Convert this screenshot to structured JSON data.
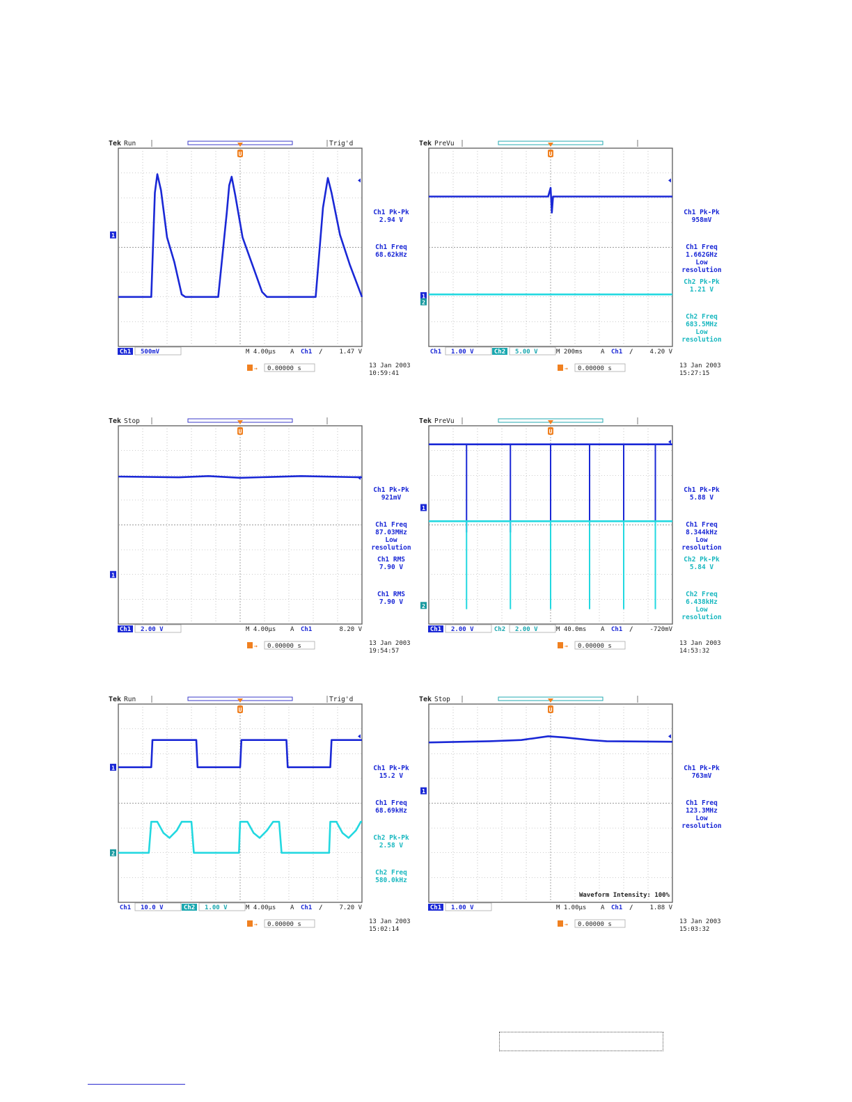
{
  "colors": {
    "ch1": "#1a28d6",
    "ch2": "#22d8e0",
    "grid": "#9a9a9a",
    "trigger": "#f08020",
    "text": "#1a28c8",
    "dark": "#222222"
  },
  "chart_data": [
    {
      "type": "line",
      "status": {
        "brand": "Tek",
        "state": "Run",
        "trig": "Trig'd"
      },
      "channels": [
        {
          "label": "Ch1",
          "scale": "500mV",
          "inverse": true
        }
      ],
      "timebase": "M 4.00µs",
      "trigger": {
        "mode": "A",
        "ch": "Ch1",
        "slope": "rising",
        "level": "1.47 V"
      },
      "position": "0.00000 s",
      "date": "13 Jan  2003",
      "time": "10:59:41",
      "measurements": [
        {
          "label": "Ch1 Pk-Pk",
          "value": "2.94 V",
          "ch": 1
        },
        {
          "label": "Ch1 Freq",
          "value": "68.62kHz",
          "ch": 1
        }
      ],
      "series": [
        {
          "ch": 1,
          "marker_y": 4.5,
          "shape": "triangle",
          "points": [
            [
              0,
              2.0
            ],
            [
              0.9,
              2.0
            ],
            [
              1.35,
              2.0
            ],
            [
              1.5,
              6.2
            ],
            [
              1.6,
              6.95
            ],
            [
              1.75,
              6.3
            ],
            [
              2.0,
              4.4
            ],
            [
              2.3,
              3.4
            ],
            [
              2.6,
              2.1
            ],
            [
              2.75,
              2.0
            ],
            [
              4.1,
              2.0
            ],
            [
              4.45,
              5.4
            ],
            [
              4.55,
              6.5
            ],
            [
              4.65,
              6.85
            ],
            [
              4.8,
              6.1
            ],
            [
              5.1,
              4.4
            ],
            [
              5.5,
              3.3
            ],
            [
              5.9,
              2.2
            ],
            [
              6.1,
              2.0
            ],
            [
              7.5,
              2.0
            ],
            [
              8.1,
              2.0
            ],
            [
              8.4,
              5.6
            ],
            [
              8.6,
              6.8
            ],
            [
              8.75,
              6.2
            ],
            [
              9.1,
              4.5
            ],
            [
              9.5,
              3.3
            ],
            [
              10,
              2.0
            ]
          ]
        }
      ]
    },
    {
      "type": "line",
      "status": {
        "brand": "Tek",
        "state": "PreVu",
        "trig": ""
      },
      "channels": [
        {
          "label": "Ch1",
          "scale": "1.00 V",
          "inverse": false
        },
        {
          "label": "Ch2",
          "scale": "5.00 V",
          "inverse": true
        }
      ],
      "timebase": "M 200ms",
      "trigger": {
        "mode": "A",
        "ch": "Ch1",
        "slope": "rising",
        "level": "4.20 V"
      },
      "position": "0.00000 s",
      "date": "13 Jan  2003",
      "time": "15:27:15",
      "measurements": [
        {
          "label": "Ch1 Pk-Pk",
          "value": "958mV",
          "ch": 1
        },
        {
          "label": "Ch1 Freq",
          "value": "1.662GHz",
          "note": [
            "Low",
            "resolution"
          ],
          "ch": 1
        },
        {
          "label": "Ch2 Pk-Pk",
          "value": "1.21 V",
          "ch": 2
        },
        {
          "label": "Ch2 Freq",
          "value": "683.5MHz",
          "note": [
            "Low",
            "resolution"
          ],
          "ch": 2
        }
      ],
      "series": [
        {
          "ch": 1,
          "marker_y": 2.05,
          "points": [
            [
              0,
              6.05
            ],
            [
              4.9,
              6.05
            ],
            [
              5.0,
              6.4
            ],
            [
              5.05,
              5.4
            ],
            [
              5.1,
              6.05
            ],
            [
              10,
              6.05
            ]
          ]
        },
        {
          "ch": 2,
          "marker_y": 1.8,
          "points": [
            [
              0,
              2.1
            ],
            [
              10,
              2.1
            ]
          ]
        }
      ]
    },
    {
      "type": "line",
      "status": {
        "brand": "Tek",
        "state": "Stop",
        "trig": ""
      },
      "channels": [
        {
          "label": "Ch1",
          "scale": "2.00 V",
          "inverse": true
        }
      ],
      "timebase": "M 4.00µs",
      "trigger": {
        "mode": "A",
        "ch": "Ch1",
        "slope": "",
        "level": "8.20 V"
      },
      "position": "0.00000 s",
      "date": "13 Jan  2003",
      "time": "19:54:57",
      "measurements": [
        {
          "label": "Ch1 Pk-Pk",
          "value": "921mV",
          "ch": 1
        },
        {
          "label": "Ch1 Freq",
          "value": "87.03MHz",
          "note": [
            "Low",
            "resolution"
          ],
          "ch": 1
        },
        {
          "label": "Ch1 RMS",
          "value": "7.90 V",
          "ch": 1
        },
        {
          "label": "Ch1 RMS",
          "value": "7.90 V",
          "ch": 1
        }
      ],
      "series": [
        {
          "ch": 1,
          "marker_y": 2.0,
          "points": [
            [
              0,
              5.95
            ],
            [
              2.5,
              5.92
            ],
            [
              3.7,
              5.97
            ],
            [
              5,
              5.9
            ],
            [
              7.5,
              5.97
            ],
            [
              10,
              5.92
            ]
          ]
        }
      ]
    },
    {
      "type": "line",
      "status": {
        "brand": "Tek",
        "state": "PreVu",
        "trig": ""
      },
      "channels": [
        {
          "label": "Ch1",
          "scale": "2.00 V",
          "inverse": true
        },
        {
          "label": "Ch2",
          "scale": "2.00 V",
          "inverse": false
        }
      ],
      "timebase": "M 40.0ms",
      "trigger": {
        "mode": "A",
        "ch": "Ch1",
        "slope": "rising",
        "level": "-720mV"
      },
      "position": "0.00000 s",
      "date": "13 Jan  2003",
      "time": "14:53:32",
      "measurements": [
        {
          "label": "Ch1 Pk-Pk",
          "value": "5.88 V",
          "ch": 1
        },
        {
          "label": "Ch1 Freq",
          "value": "8.344kHz",
          "note": [
            "Low",
            "resolution"
          ],
          "ch": 1
        },
        {
          "label": "Ch2 Pk-Pk",
          "value": "5.84 V",
          "ch": 2
        },
        {
          "label": "Ch2 Freq",
          "value": "6.438kHz",
          "note": [
            "Low",
            "resolution"
          ],
          "ch": 2
        }
      ],
      "series": [
        {
          "ch": 1,
          "marker_y": 4.7,
          "base": 7.25,
          "spike_to": 3.7,
          "spikes": [
            1.55,
            3.35,
            5.0,
            6.6,
            8.0,
            9.3
          ]
        },
        {
          "ch": 2,
          "marker_y": 0.75,
          "base": 4.15,
          "spike_to": 0.6,
          "spikes": [
            1.55,
            3.35,
            5.0,
            6.6,
            8.0,
            9.3
          ]
        }
      ]
    },
    {
      "type": "line",
      "status": {
        "brand": "Tek",
        "state": "Run",
        "trig": "Trig'd"
      },
      "channels": [
        {
          "label": "Ch1",
          "scale": "10.0 V",
          "inverse": false
        },
        {
          "label": "Ch2",
          "scale": "1.00 V",
          "inverse": true
        }
      ],
      "timebase": "M 4.00µs",
      "trigger": {
        "mode": "A",
        "ch": "Ch1",
        "slope": "rising",
        "level": "7.20 V"
      },
      "position": "0.00000 s",
      "date": "13 Jan  2003",
      "time": "15:02:14",
      "measurements": [
        {
          "label": "Ch1 Pk-Pk",
          "value": "15.2 V",
          "ch": 1
        },
        {
          "label": "Ch1 Freq",
          "value": "68.69kHz",
          "ch": 1
        },
        {
          "label": "Ch2 Pk-Pk",
          "value": "2.58 V",
          "ch": 2
        },
        {
          "label": "Ch2 Freq",
          "value": "580.0kHz",
          "ch": 2
        }
      ],
      "series": [
        {
          "ch": 1,
          "marker_y": 5.45,
          "points": [
            [
              0,
              5.45
            ],
            [
              1.35,
              5.45
            ],
            [
              1.4,
              6.55
            ],
            [
              1.9,
              6.55
            ],
            [
              3.2,
              6.55
            ],
            [
              3.25,
              5.45
            ],
            [
              5.0,
              5.45
            ],
            [
              5.05,
              6.55
            ],
            [
              6.9,
              6.55
            ],
            [
              6.95,
              5.45
            ],
            [
              8.7,
              5.45
            ],
            [
              8.75,
              6.55
            ],
            [
              10,
              6.55
            ]
          ]
        },
        {
          "ch": 2,
          "marker_y": 2.0,
          "points": [
            [
              0,
              2.0
            ],
            [
              1.25,
              2.0
            ],
            [
              1.35,
              3.25
            ],
            [
              1.6,
              3.25
            ],
            [
              1.85,
              2.8
            ],
            [
              2.1,
              2.6
            ],
            [
              2.4,
              2.9
            ],
            [
              2.6,
              3.25
            ],
            [
              3.0,
              3.25
            ],
            [
              3.1,
              2.0
            ],
            [
              4.95,
              2.0
            ],
            [
              5.0,
              3.25
            ],
            [
              5.3,
              3.25
            ],
            [
              5.55,
              2.8
            ],
            [
              5.8,
              2.6
            ],
            [
              6.1,
              2.9
            ],
            [
              6.35,
              3.25
            ],
            [
              6.6,
              3.25
            ],
            [
              6.7,
              2.0
            ],
            [
              8.65,
              2.0
            ],
            [
              8.7,
              3.25
            ],
            [
              8.95,
              3.25
            ],
            [
              9.2,
              2.8
            ],
            [
              9.45,
              2.6
            ],
            [
              9.75,
              2.9
            ],
            [
              9.95,
              3.25
            ],
            [
              10,
              3.25
            ]
          ]
        }
      ]
    },
    {
      "type": "line",
      "status": {
        "brand": "Tek",
        "state": "Stop",
        "trig": ""
      },
      "channels": [
        {
          "label": "Ch1",
          "scale": "1.00 V",
          "inverse": true
        }
      ],
      "timebase": "M 1.00µs",
      "trigger": {
        "mode": "A",
        "ch": "Ch1",
        "slope": "rising",
        "level": "1.88 V"
      },
      "position": "0.00000 s",
      "date": "13 Jan  2003",
      "time": "15:03:32",
      "annotation": "Waveform Intensity: 100%",
      "measurements": [
        {
          "label": "Ch1 Pk-Pk",
          "value": "763mV",
          "ch": 1
        },
        {
          "label": "Ch1 Freq",
          "value": "123.3MHz",
          "note": [
            "Low",
            "resolution"
          ],
          "ch": 1
        }
      ],
      "series": [
        {
          "ch": 1,
          "marker_y": 4.5,
          "points": [
            [
              0,
              6.45
            ],
            [
              2.5,
              6.5
            ],
            [
              3.8,
              6.55
            ],
            [
              4.9,
              6.7
            ],
            [
              5.6,
              6.65
            ],
            [
              6.6,
              6.55
            ],
            [
              7.3,
              6.5
            ],
            [
              10,
              6.48
            ]
          ]
        }
      ]
    }
  ]
}
